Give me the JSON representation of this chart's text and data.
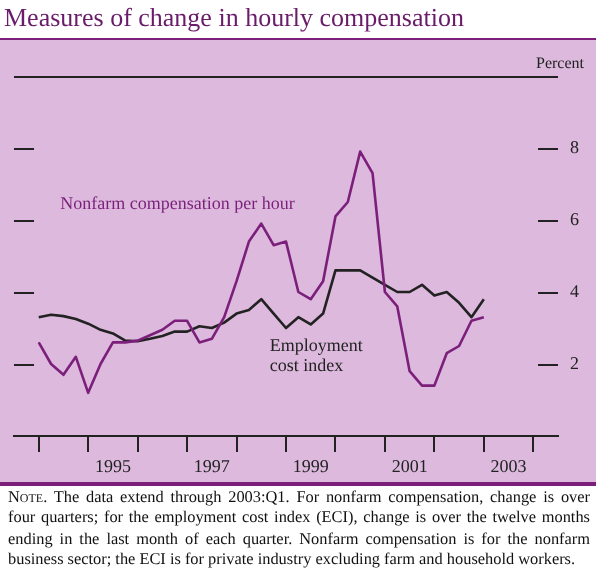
{
  "chart_data": {
    "type": "line",
    "title": "Measures of change in hourly compensation",
    "ylabel": "Percent",
    "annotations": [
      "Note. The data extend through 2003:Q1. For nonfarm compensation, change is over four quarters; for the employment cost index (ECI), change is over the twelve months ending in the last month of each quarter. Nonfarm compensation is for the nonfarm business sector; the ECI is for private industry excluding farm and household workers."
    ],
    "x": [
      1994,
      1994.25,
      1994.5,
      1994.75,
      1995,
      1995.25,
      1995.5,
      1995.75,
      1996,
      1996.25,
      1996.5,
      1996.75,
      1997,
      1997.25,
      1997.5,
      1997.75,
      1998,
      1998.25,
      1998.5,
      1998.75,
      1999,
      1999.25,
      1999.5,
      1999.75,
      2000,
      2000.25,
      2000.5,
      2000.75,
      2001,
      2001.25,
      2001.5,
      2001.75,
      2002,
      2002.25,
      2002.5,
      2002.75,
      2003
    ],
    "series": [
      {
        "name": "Nonfarm compensation per hour",
        "color": "#7b1f7b",
        "values": [
          2.6,
          2.0,
          1.7,
          2.2,
          1.2,
          2.0,
          2.6,
          2.6,
          2.65,
          2.8,
          2.95,
          3.2,
          3.2,
          2.6,
          2.7,
          3.3,
          4.3,
          5.4,
          5.9,
          5.3,
          5.4,
          4.0,
          3.8,
          4.3,
          6.1,
          6.5,
          7.9,
          7.3,
          4.0,
          3.6,
          1.8,
          1.4,
          1.4,
          2.3,
          2.5,
          3.2,
          3.3
        ]
      },
      {
        "name": "Employment cost index",
        "color": "#222222",
        "values": [
          3.3,
          3.37,
          3.33,
          3.25,
          3.12,
          2.95,
          2.85,
          2.65,
          2.63,
          2.7,
          2.78,
          2.9,
          2.9,
          3.05,
          3.0,
          3.15,
          3.4,
          3.5,
          3.8,
          3.4,
          3.0,
          3.3,
          3.1,
          3.4,
          4.6,
          4.6,
          4.6,
          4.4,
          4.2,
          4.0,
          4.0,
          4.2,
          3.9,
          4.0,
          3.7,
          3.3,
          3.8
        ]
      }
    ],
    "xlim": [
      1993.5,
      2004.5
    ],
    "xticks": [
      {
        "value": 1994,
        "label": null
      },
      {
        "value": 1995,
        "label": null
      },
      {
        "value": 1995.5,
        "label": "1995"
      },
      {
        "value": 1996,
        "label": null
      },
      {
        "value": 1997,
        "label": null
      },
      {
        "value": 1997.5,
        "label": "1997"
      },
      {
        "value": 1998,
        "label": null
      },
      {
        "value": 1999,
        "label": null
      },
      {
        "value": 1999.5,
        "label": "1999"
      },
      {
        "value": 2000,
        "label": null
      },
      {
        "value": 2001,
        "label": null
      },
      {
        "value": 2001.5,
        "label": "2001"
      },
      {
        "value": 2002,
        "label": null
      },
      {
        "value": 2003,
        "label": null
      },
      {
        "value": 2003.5,
        "label": "2003"
      },
      {
        "value": 2004,
        "label": null
      }
    ],
    "ylim": [
      0,
      10
    ],
    "yticks": [
      2,
      4,
      6,
      8
    ],
    "grid": false,
    "legend": false,
    "marker": "none",
    "line_style": "solid"
  }
}
